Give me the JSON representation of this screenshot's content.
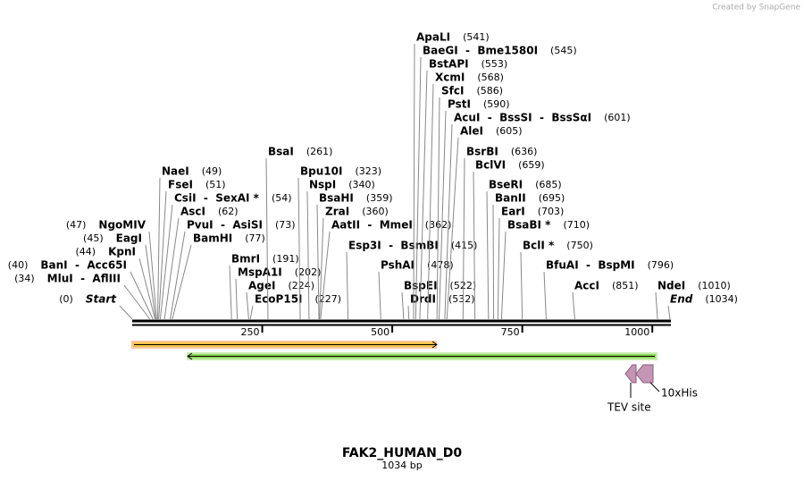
{
  "watermark": "Created by SnapGene",
  "map": {
    "length": 1034,
    "ticks": [
      250,
      500,
      750,
      1000
    ],
    "enzymes": [
      {
        "name": "Start",
        "position": 0,
        "position_label": "(0)"
      },
      {
        "name": "MluI  -  AflIII",
        "position": 34,
        "position_label": "(34)"
      },
      {
        "name": "BanI  -  Acc65I",
        "position": 40,
        "position_label": "(40)"
      },
      {
        "name": "KpnI",
        "position": 44,
        "position_label": "(44)"
      },
      {
        "name": "EagI",
        "position": 45,
        "position_label": "(45)"
      },
      {
        "name": "NgoMIV",
        "position": 47,
        "position_label": "(47)"
      },
      {
        "name": "NaeI",
        "position": 49,
        "position_label": "(49)"
      },
      {
        "name": "FseI",
        "position": 51,
        "position_label": "(51)"
      },
      {
        "name": "CsiI  -  SexAI *",
        "position": 54,
        "position_label": "(54)"
      },
      {
        "name": "AscI",
        "position": 62,
        "position_label": "(62)"
      },
      {
        "name": "PvuI  -  AsiSI",
        "position": 73,
        "position_label": "(73)"
      },
      {
        "name": "BamHI",
        "position": 77,
        "position_label": "(77)"
      },
      {
        "name": "BmrI",
        "position": 191,
        "position_label": "(191)"
      },
      {
        "name": "MspA1I",
        "position": 202,
        "position_label": "(202)"
      },
      {
        "name": "AgeI",
        "position": 224,
        "position_label": "(224)"
      },
      {
        "name": "EcoP15I",
        "position": 227,
        "position_label": "(227)"
      },
      {
        "name": "BsaI",
        "position": 261,
        "position_label": "(261)"
      },
      {
        "name": "Bpu10I",
        "position": 323,
        "position_label": "(323)"
      },
      {
        "name": "NspI",
        "position": 340,
        "position_label": "(340)"
      },
      {
        "name": "BsaHI",
        "position": 359,
        "position_label": "(359)"
      },
      {
        "name": "ZraI",
        "position": 360,
        "position_label": "(360)"
      },
      {
        "name": "AatII  -  MmeI",
        "position": 362,
        "position_label": "(362)"
      },
      {
        "name": "Esp3I  -  BsmBI",
        "position": 415,
        "position_label": "(415)"
      },
      {
        "name": "PshAI",
        "position": 478,
        "position_label": "(478)"
      },
      {
        "name": "BspEI",
        "position": 522,
        "position_label": "(522)"
      },
      {
        "name": "DrdI",
        "position": 532,
        "position_label": "(532)"
      },
      {
        "name": "ApaLI",
        "position": 541,
        "position_label": "(541)"
      },
      {
        "name": "BaeGI  -  Bme1580I",
        "position": 545,
        "position_label": "(545)"
      },
      {
        "name": "BstAPI",
        "position": 553,
        "position_label": "(553)"
      },
      {
        "name": "XcmI",
        "position": 568,
        "position_label": "(568)"
      },
      {
        "name": "SfcI",
        "position": 586,
        "position_label": "(586)"
      },
      {
        "name": "PstI",
        "position": 590,
        "position_label": "(590)"
      },
      {
        "name": "AcuI  -  BssSI  -  BssSαI",
        "position": 601,
        "position_label": "(601)"
      },
      {
        "name": "AleI",
        "position": 605,
        "position_label": "(605)"
      },
      {
        "name": "BsrBI",
        "position": 636,
        "position_label": "(636)"
      },
      {
        "name": "BclVI",
        "position": 659,
        "position_label": "(659)"
      },
      {
        "name": "BseRI",
        "position": 685,
        "position_label": "(685)"
      },
      {
        "name": "BanII",
        "position": 695,
        "position_label": "(695)"
      },
      {
        "name": "EarI",
        "position": 703,
        "position_label": "(703)"
      },
      {
        "name": "BsaBI *",
        "position": 710,
        "position_label": "(710)"
      },
      {
        "name": "BclI *",
        "position": 750,
        "position_label": "(750)"
      },
      {
        "name": "BfuAI  -  BspMI",
        "position": 796,
        "position_label": "(796)"
      },
      {
        "name": "AccI",
        "position": 851,
        "position_label": "(851)"
      },
      {
        "name": "NdeI",
        "position": 1010,
        "position_label": "(1010)"
      },
      {
        "name": "End",
        "position": 1034,
        "position_label": "(1034)"
      }
    ],
    "features": [
      {
        "label": "10xHis"
      },
      {
        "label": "TEV site"
      }
    ]
  },
  "title": "FAK2_HUMAN_D0",
  "subtitle": "1034 bp"
}
